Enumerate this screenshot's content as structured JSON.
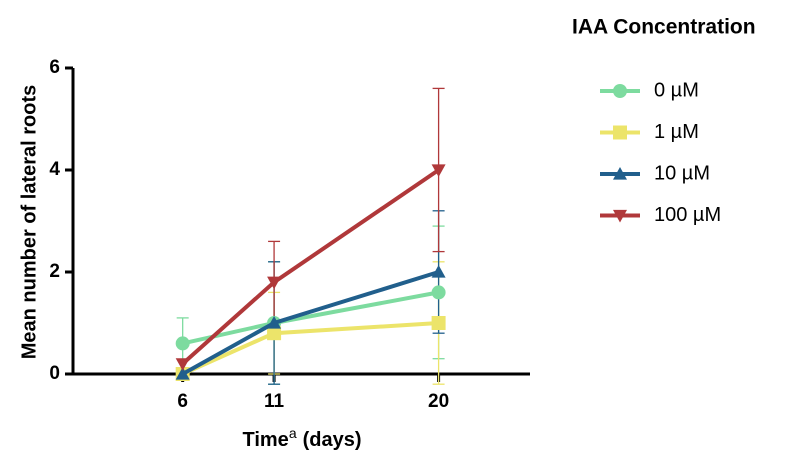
{
  "chart_data": {
    "type": "line",
    "ylabel": "Mean number of lateral roots",
    "xlabel": "Time",
    "xlabel_sup": "a",
    "xlabel_suffix": "(days)",
    "legend_title": "IAA Concentration",
    "x": [
      6,
      11,
      20
    ],
    "xlim": [
      0,
      25
    ],
    "xticks": [
      6,
      11,
      20
    ],
    "ylim": [
      0,
      6
    ],
    "yticks": [
      0,
      2,
      4,
      6
    ],
    "series": [
      {
        "name": "0 µM",
        "color": "#7ddb9f",
        "marker": "circle",
        "values": [
          0.6,
          1.0,
          1.6
        ],
        "errors": [
          0.5,
          1.2,
          1.3
        ]
      },
      {
        "name": "1 µM",
        "color": "#ece46a",
        "marker": "square",
        "values": [
          0,
          0.8,
          1.0
        ],
        "errors": [
          0,
          0.8,
          1.2
        ]
      },
      {
        "name": "10 µM",
        "color": "#215f8c",
        "marker": "triangle-up",
        "values": [
          0,
          1.0,
          2.0
        ],
        "errors": [
          0,
          1.2,
          1.2
        ]
      },
      {
        "name": "100 µM",
        "color": "#b0383a",
        "marker": "triangle-down",
        "values": [
          0.2,
          1.8,
          4.0
        ],
        "errors": [
          0,
          0.8,
          1.6
        ]
      }
    ]
  }
}
